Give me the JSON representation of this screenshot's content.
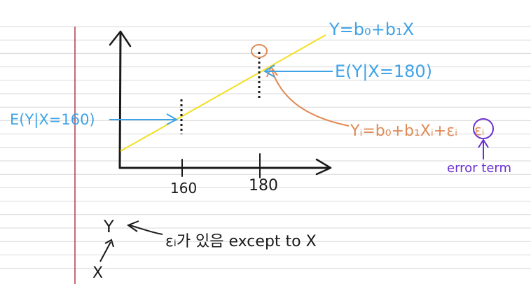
{
  "colors": {
    "paper_line": "#d9d9d9",
    "margin_line": "#b03a48",
    "ink": "#1a1a1a",
    "regression_line": "#f2e020",
    "blue": "#3fa3e8",
    "orange": "#e08a55",
    "purple": "#6a2fd0"
  },
  "labels": {
    "model_equation": "Y=b₀+b₁X",
    "expectation_180": "E(Y|X=180)",
    "expectation_160": "E(Y|X=160)",
    "observation_equation": "Yᵢ=b₀+b₁Xᵢ+εᵢ",
    "error_symbol": "εᵢ",
    "error_term": "error term",
    "tick_160": "160",
    "tick_180": "180",
    "note_text": "εᵢ가 있음 except to X",
    "y_note": "Y",
    "x_note": "X"
  },
  "icons": {
    "arrow": "arrow-icon"
  }
}
